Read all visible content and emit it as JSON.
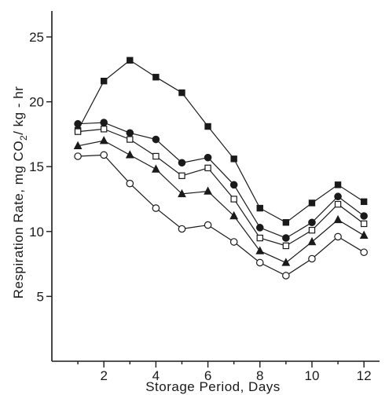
{
  "chart_data": {
    "type": "line",
    "title": "",
    "xlabel": "Storage  Period, Days",
    "ylabel_parts": {
      "prefix": "Respiration  Rate, mg  CO",
      "subscript": "2",
      "suffix": "/ kg - hr"
    },
    "xlim": [
      0,
      12.6
    ],
    "ylim": [
      0,
      27
    ],
    "x_ticks": [
      2,
      4,
      6,
      8,
      10,
      12
    ],
    "x_minor_ticks": [
      1,
      3,
      5,
      7,
      9,
      11
    ],
    "y_ticks": [
      5,
      10,
      15,
      20,
      25
    ],
    "x": [
      1,
      2,
      3,
      4,
      5,
      6,
      7,
      8,
      9,
      10,
      11,
      12
    ],
    "series": [
      {
        "marker": "filled-square",
        "values": [
          17.8,
          21.6,
          23.2,
          21.9,
          20.7,
          18.1,
          15.6,
          11.8,
          10.7,
          12.2,
          13.6,
          12.3
        ]
      },
      {
        "marker": "filled-circle",
        "values": [
          18.3,
          18.4,
          17.6,
          17.1,
          15.3,
          15.7,
          13.6,
          10.3,
          9.5,
          10.7,
          12.7,
          11.2
        ]
      },
      {
        "marker": "open-square",
        "values": [
          17.7,
          17.9,
          17.1,
          15.8,
          14.3,
          14.9,
          12.5,
          9.5,
          8.9,
          10.1,
          12.1,
          10.6
        ]
      },
      {
        "marker": "filled-triangle",
        "values": [
          16.6,
          17.0,
          15.9,
          14.8,
          12.9,
          13.1,
          11.2,
          8.5,
          7.6,
          9.2,
          10.9,
          9.7
        ]
      },
      {
        "marker": "open-circle",
        "values": [
          15.8,
          15.9,
          13.7,
          11.8,
          10.2,
          10.5,
          9.2,
          7.6,
          6.6,
          7.9,
          9.6,
          8.4
        ]
      }
    ]
  }
}
